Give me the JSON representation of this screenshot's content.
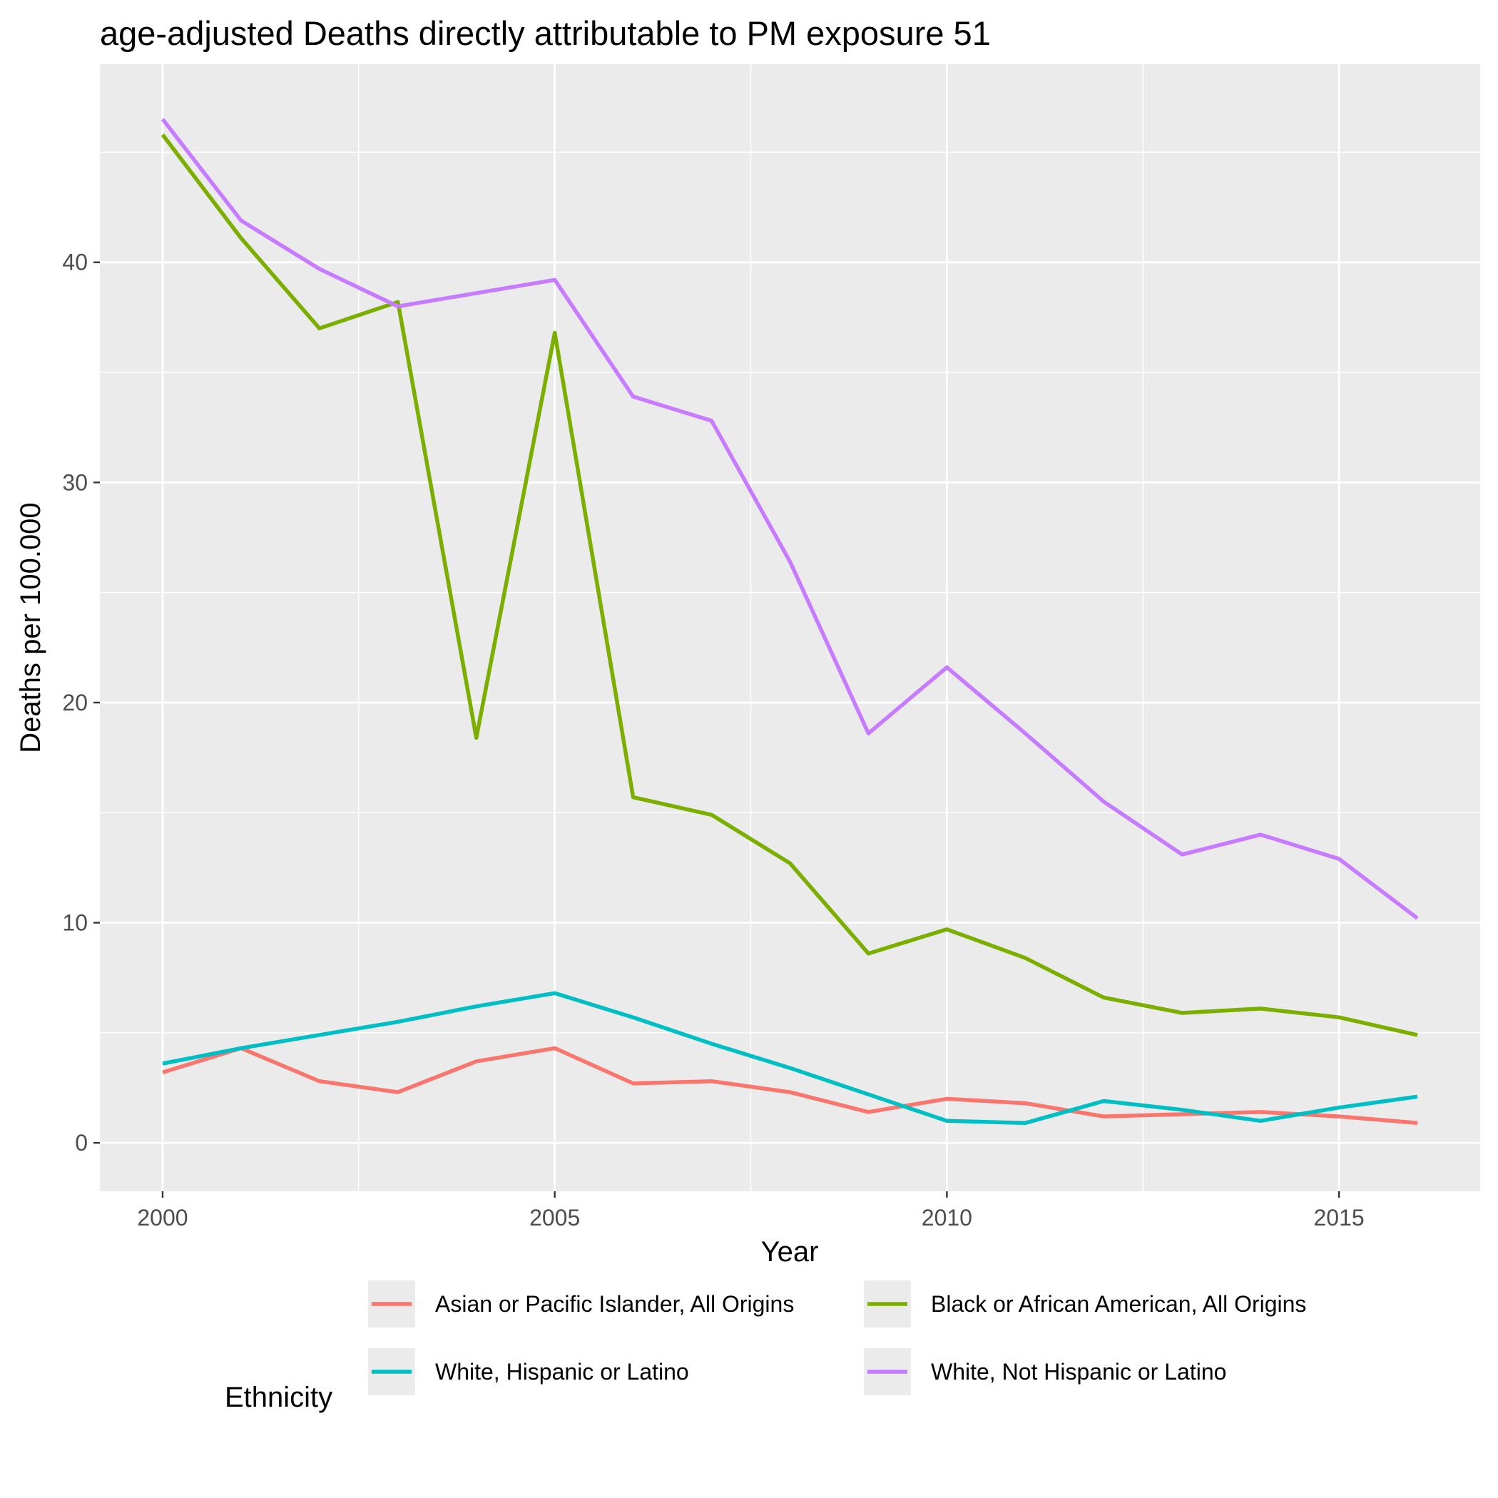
{
  "chart_data": {
    "type": "line",
    "title": "age-adjusted Deaths directly attributable to PM exposure 51",
    "xlabel": "Year",
    "ylabel": "Deaths per 100.000",
    "xlim": [
      1999.2,
      2016.8
    ],
    "ylim": [
      -2.2,
      49.0
    ],
    "x_ticks": [
      2000,
      2005,
      2010,
      2015
    ],
    "x_tick_labels": [
      "2000",
      "2005",
      "2010",
      "2015"
    ],
    "y_ticks": [
      0,
      10,
      20,
      30,
      40
    ],
    "y_tick_labels": [
      "0",
      "10",
      "20",
      "30",
      "40"
    ],
    "grid": true,
    "legend": {
      "title": "Ethnicity",
      "position": "bottom"
    },
    "series": [
      {
        "name": "Asian or Pacific Islander, All Origins",
        "color": "#F8766D",
        "x": [
          2000,
          2001,
          2002,
          2003,
          2004,
          2005,
          2006,
          2007,
          2008,
          2009,
          2010,
          2011,
          2012,
          2013,
          2014,
          2015,
          2016
        ],
        "y": [
          3.2,
          4.3,
          2.8,
          2.3,
          3.7,
          4.3,
          2.7,
          2.8,
          2.3,
          1.4,
          2.0,
          1.8,
          1.2,
          1.3,
          1.4,
          1.2,
          0.9
        ]
      },
      {
        "name": "Black or African American, All Origins",
        "color": "#7CAE00",
        "x": [
          2000,
          2001,
          2002,
          2003,
          2004,
          2005,
          2006,
          2007,
          2008,
          2009,
          2010,
          2011,
          2012,
          2013,
          2014,
          2015,
          2016
        ],
        "y": [
          45.8,
          41.1,
          37.0,
          38.2,
          18.4,
          36.8,
          15.7,
          14.9,
          12.7,
          8.6,
          9.7,
          8.4,
          6.6,
          5.9,
          6.1,
          5.7,
          4.9
        ]
      },
      {
        "name": "White, Hispanic or Latino",
        "color": "#00BFC4",
        "x": [
          2000,
          2001,
          2002,
          2003,
          2004,
          2005,
          2006,
          2007,
          2008,
          2009,
          2010,
          2011,
          2012,
          2013,
          2014,
          2015,
          2016
        ],
        "y": [
          3.6,
          4.3,
          4.9,
          5.5,
          6.2,
          6.8,
          5.7,
          4.5,
          3.4,
          2.2,
          1.0,
          0.9,
          1.9,
          1.5,
          1.0,
          1.6,
          2.1
        ]
      },
      {
        "name": "White, Not Hispanic or Latino",
        "color": "#C77CFF",
        "x": [
          2000,
          2001,
          2002,
          2003,
          2004,
          2005,
          2006,
          2007,
          2008,
          2009,
          2010,
          2011,
          2012,
          2013,
          2014,
          2015,
          2016
        ],
        "y": [
          46.5,
          41.9,
          39.7,
          38.0,
          38.6,
          39.2,
          33.9,
          32.8,
          26.4,
          18.6,
          21.6,
          18.6,
          15.5,
          13.1,
          14.0,
          12.9,
          10.2
        ]
      }
    ]
  }
}
